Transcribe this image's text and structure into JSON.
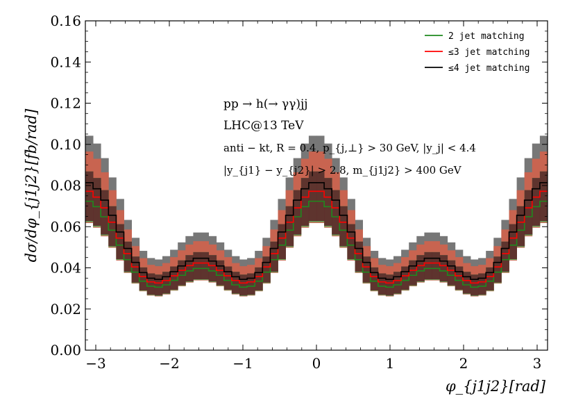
{
  "chart_data": {
    "type": "line",
    "step": true,
    "xlabel": "φ_{j1j2}[rad]",
    "ylabel": "dσ/dφ_{j1j2}[fb/rad]",
    "xlim": [
      -3.1416,
      3.1416
    ],
    "ylim": [
      0,
      0.16
    ],
    "xticks": [
      -3,
      -2,
      -1,
      0,
      1,
      2,
      3
    ],
    "xtick_labels": [
      "−3",
      "−2",
      "−1",
      "0",
      "1",
      "2",
      "3"
    ],
    "yticks": [
      0,
      0.02,
      0.04,
      0.06,
      0.08,
      0.1,
      0.12,
      0.14,
      0.16
    ],
    "ytick_labels": [
      "0.00",
      "0.02",
      "0.04",
      "0.06",
      "0.08",
      "0.10",
      "0.12",
      "0.14",
      "0.16"
    ],
    "grid": false,
    "legend_position": "top-right",
    "bins": 60,
    "annotations": [
      "pp → h(→ γγ)jj",
      "LHC@13 TeV",
      "anti − kt, R = 0.4, p_{j,⊥} > 30 GeV, |y_j| < 4.4",
      "|y_{j1} − y_{j2}| > 2.8, m_{j1j2} > 400 GeV"
    ],
    "shape": {
      "description": "values follow c·(1 + a·cos(2φ) + b·cos(4φ)) per bin center",
      "a": 0.3657,
      "b": 0.2535
    },
    "series": [
      {
        "name": "2 jet matching",
        "color": "#1e8a1e",
        "band_color": "#66bb66",
        "scale": 0.0449,
        "band_low": 0.86,
        "band_high": 1.2
      },
      {
        "name": "≤3 jet matching",
        "color": "#ff0000",
        "band_color": "#c86450",
        "scale": 0.0479,
        "band_low": 0.8,
        "band_high": 1.25
      },
      {
        "name": "≤4 jet matching",
        "color": "#000000",
        "band_color": "#777777",
        "scale": 0.0505,
        "band_low": 0.77,
        "band_high": 1.28
      }
    ],
    "overlap_color": "#5e2a2a"
  }
}
